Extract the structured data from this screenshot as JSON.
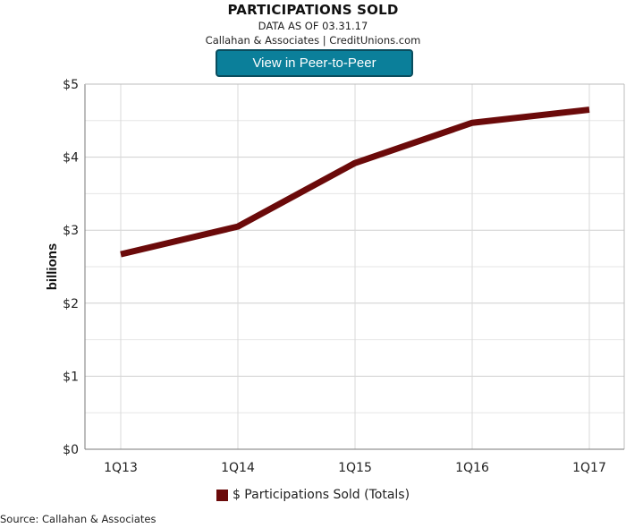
{
  "header": {
    "title": "PARTICIPATIONS SOLD",
    "as_of": "DATA AS OF 03.31.17",
    "credit": "Callahan & Associates | CreditUnions.com",
    "button_label": "View in Peer-to-Peer"
  },
  "chart_data": {
    "type": "line",
    "title": "PARTICIPATIONS SOLD",
    "subtitle": "DATA AS OF 03.31.17",
    "xlabel": "",
    "ylabel": "billions",
    "categories": [
      "1Q13",
      "1Q14",
      "1Q15",
      "1Q16",
      "1Q17"
    ],
    "series": [
      {
        "name": "$ Participations Sold (Totals)",
        "values": [
          2.67,
          3.05,
          3.92,
          4.47,
          4.65
        ],
        "color": "#6b0a0a"
      }
    ],
    "ylim": [
      0,
      5
    ],
    "yticks": [
      0,
      1,
      2,
      3,
      4,
      5
    ],
    "ytick_labels": [
      "$0",
      "$1",
      "$2",
      "$3",
      "$4",
      "$5"
    ],
    "grid": true,
    "legend": "bottom-center"
  },
  "footer": {
    "source": "Source: Callahan & Associates"
  }
}
